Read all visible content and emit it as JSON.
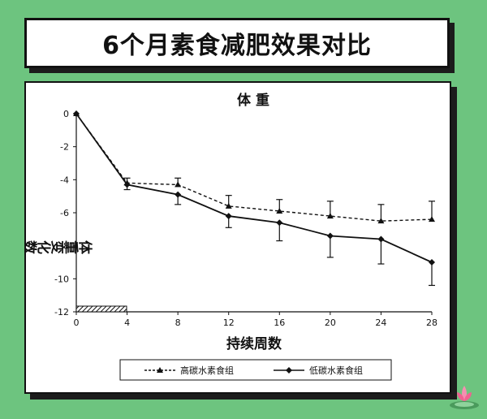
{
  "page_title": "6个月素食减肥效果对比",
  "chart_data": {
    "type": "line",
    "title": "体 重",
    "xlabel": "持续周数",
    "ylabel": "体重变化数(kg)",
    "x": [
      0,
      4,
      8,
      12,
      16,
      20,
      24,
      28
    ],
    "xticks": [
      "0",
      "4",
      "8",
      "12",
      "16",
      "20",
      "24",
      "28"
    ],
    "yticks": [
      "0",
      "-2",
      "-4",
      "-6",
      "-8",
      "-10",
      "-12"
    ],
    "xlim": [
      0,
      28
    ],
    "ylim": [
      -12,
      0
    ],
    "grid": false,
    "legend_position": "bottom",
    "series": [
      {
        "name": "高碳水素食组",
        "style": "dashed",
        "marker": "triangle",
        "values": [
          0,
          -4.2,
          -4.3,
          -5.6,
          -5.9,
          -6.2,
          -6.5,
          -6.4
        ],
        "errors": [
          0,
          0.3,
          0.4,
          0.65,
          0.7,
          0.9,
          1.0,
          1.1
        ]
      },
      {
        "name": "低碳水素食组",
        "style": "solid",
        "marker": "diamond",
        "values": [
          0,
          -4.3,
          -4.9,
          -6.2,
          -6.6,
          -7.4,
          -7.6,
          -9.0
        ],
        "errors": [
          0,
          0.3,
          0.6,
          0.7,
          1.1,
          1.3,
          1.5,
          1.4
        ]
      }
    ]
  }
}
